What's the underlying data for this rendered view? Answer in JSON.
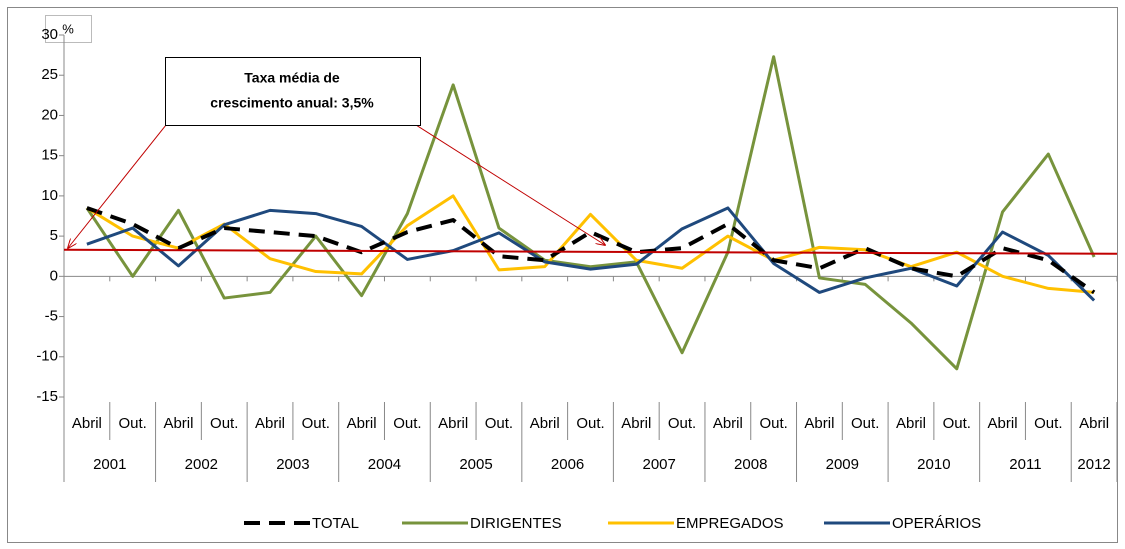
{
  "chart_data": {
    "type": "line",
    "y_label": "%",
    "categories": [
      "Abril",
      "Out.",
      "Abril",
      "Out.",
      "Abril",
      "Out.",
      "Abril",
      "Out.",
      "Abril",
      "Out.",
      "Abril",
      "Out.",
      "Abril",
      "Out.",
      "Abril",
      "Out.",
      "Abril",
      "Out.",
      "Abril",
      "Out.",
      "Abril",
      "Out.",
      "Abril"
    ],
    "x_groups": [
      "2001",
      "2002",
      "2003",
      "2004",
      "2005",
      "2006",
      "2007",
      "2008",
      "2009",
      "2010",
      "2011",
      "2012"
    ],
    "series": [
      {
        "name": "TOTAL",
        "color": "#000000",
        "style": "dashed",
        "values": [
          8.5,
          6.5,
          3.5,
          6,
          5.5,
          5,
          3,
          5.5,
          7,
          2.5,
          2,
          5.5,
          3,
          3.5,
          6.5,
          2,
          1,
          3.5,
          1,
          0,
          3.5,
          2,
          -2
        ]
      },
      {
        "name": "DIRIGENTES",
        "color": "#77933c",
        "style": "solid",
        "values": [
          8.5,
          0,
          8.2,
          -2.7,
          -2,
          5,
          -2.4,
          7.8,
          23.8,
          6,
          2,
          1.2,
          1.8,
          -9.5,
          3,
          27.3,
          -0.2,
          -1,
          -5.8,
          -11.5,
          8,
          15.2,
          2.4
        ]
      },
      {
        "name": "EMPREGADOS",
        "color": "#ffc000",
        "style": "solid",
        "values": [
          8.5,
          5,
          3.5,
          6.5,
          2.2,
          0.6,
          0.3,
          6.3,
          10,
          0.8,
          1.2,
          7.7,
          2,
          1,
          5,
          2,
          3.6,
          3.3,
          1.2,
          3,
          0,
          -1.5,
          -2
        ]
      },
      {
        "name": "OPERÁRIOS",
        "color": "#1f497d",
        "style": "solid",
        "values": [
          4,
          6,
          1.3,
          6.4,
          8.2,
          7.8,
          6.2,
          2.1,
          3.2,
          5.4,
          1.8,
          0.9,
          1.5,
          5.9,
          8.5,
          1.6,
          -2,
          -0.2,
          1,
          -1.2,
          5.5,
          2.6,
          -3
        ]
      }
    ],
    "trend_line": {
      "color": "#c00000",
      "values": [
        3.3,
        2.8
      ]
    },
    "annotation": [
      "Taxa média de",
      "crescimento anual: 3,5%"
    ],
    "ylim": [
      -15,
      30
    ],
    "yticks": [
      -15,
      -10,
      -5,
      0,
      5,
      10,
      15,
      20,
      25,
      30
    ],
    "grid": false,
    "legend": "bottom"
  }
}
